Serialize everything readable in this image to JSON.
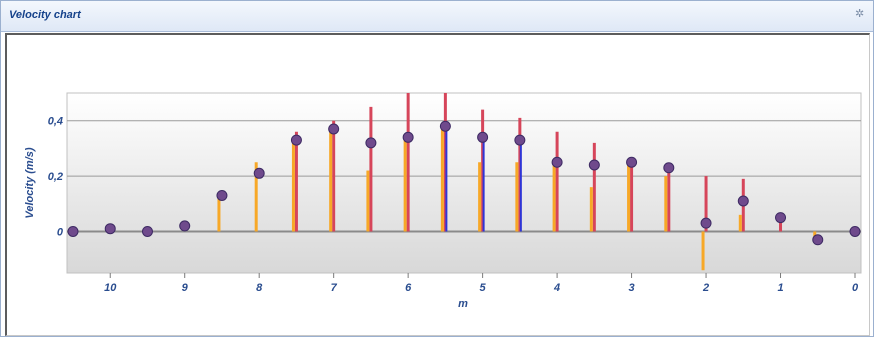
{
  "window": {
    "title": "Velocity chart",
    "pin_icon": "pin-icon"
  },
  "chart_data": {
    "type": "scatter",
    "title": "",
    "xlabel": "m",
    "ylabel": "Velocity (m/s)",
    "xlim": [
      10.5,
      0
    ],
    "ylim": [
      -0.15,
      0.5
    ],
    "x_ticks": [
      10,
      9,
      8,
      7,
      6,
      5,
      4,
      3,
      2,
      1,
      0
    ],
    "x_tick_labels": [
      "10",
      "9",
      "8",
      "7",
      "6",
      "5",
      "4",
      "3",
      "2",
      "1",
      "0"
    ],
    "y_ticks": [
      0,
      0.2,
      0.4
    ],
    "y_tick_labels": [
      "0",
      "0,2",
      "0,4"
    ],
    "grid": true,
    "colors": {
      "points": "#6f4a8c",
      "red_bars": "#d6455a",
      "orange_bars": "#f7a827",
      "blue_bars": "#2f35d6",
      "zero_line": "#8a8a8a"
    },
    "points": [
      {
        "x": 10.5,
        "y": 0.0
      },
      {
        "x": 10.0,
        "y": 0.01
      },
      {
        "x": 9.5,
        "y": 0.0
      },
      {
        "x": 9.0,
        "y": 0.02
      },
      {
        "x": 8.5,
        "y": 0.13
      },
      {
        "x": 8.0,
        "y": 0.21
      },
      {
        "x": 7.5,
        "y": 0.33
      },
      {
        "x": 7.0,
        "y": 0.37
      },
      {
        "x": 6.5,
        "y": 0.32
      },
      {
        "x": 6.0,
        "y": 0.34
      },
      {
        "x": 5.5,
        "y": 0.38
      },
      {
        "x": 5.0,
        "y": 0.34
      },
      {
        "x": 4.5,
        "y": 0.33
      },
      {
        "x": 4.0,
        "y": 0.25
      },
      {
        "x": 3.5,
        "y": 0.24
      },
      {
        "x": 3.0,
        "y": 0.25
      },
      {
        "x": 2.5,
        "y": 0.23
      },
      {
        "x": 2.0,
        "y": 0.03
      },
      {
        "x": 1.5,
        "y": 0.11
      },
      {
        "x": 1.0,
        "y": 0.05
      },
      {
        "x": 0.5,
        "y": -0.03
      },
      {
        "x": 0.0,
        "y": 0.0
      }
    ],
    "red_series": [
      {
        "x": 7.5,
        "y": 0.36
      },
      {
        "x": 7.0,
        "y": 0.4
      },
      {
        "x": 6.5,
        "y": 0.45
      },
      {
        "x": 6.0,
        "y": 0.5
      },
      {
        "x": 5.5,
        "y": 0.5
      },
      {
        "x": 5.0,
        "y": 0.44
      },
      {
        "x": 4.5,
        "y": 0.41
      },
      {
        "x": 4.0,
        "y": 0.36
      },
      {
        "x": 3.5,
        "y": 0.32
      },
      {
        "x": 3.0,
        "y": 0.26
      },
      {
        "x": 2.5,
        "y": 0.24
      },
      {
        "x": 2.0,
        "y": 0.2
      },
      {
        "x": 1.5,
        "y": 0.19
      },
      {
        "x": 1.0,
        "y": 0.05
      }
    ],
    "orange_series": [
      {
        "x": 8.5,
        "y": 0.12
      },
      {
        "x": 8.0,
        "y": 0.25
      },
      {
        "x": 7.5,
        "y": 0.34
      },
      {
        "x": 7.0,
        "y": 0.38
      },
      {
        "x": 6.5,
        "y": 0.22
      },
      {
        "x": 6.0,
        "y": 0.35
      },
      {
        "x": 5.5,
        "y": 0.38
      },
      {
        "x": 5.0,
        "y": 0.25
      },
      {
        "x": 4.5,
        "y": 0.25
      },
      {
        "x": 4.0,
        "y": 0.25
      },
      {
        "x": 3.5,
        "y": 0.16
      },
      {
        "x": 3.0,
        "y": 0.24
      },
      {
        "x": 2.5,
        "y": 0.2
      },
      {
        "x": 2.0,
        "y": -0.14
      },
      {
        "x": 1.5,
        "y": 0.06
      },
      {
        "x": 0.5,
        "y": -0.02
      }
    ],
    "blue_series": [
      {
        "x": 5.5,
        "y": 0.38
      },
      {
        "x": 5.0,
        "y": 0.34
      },
      {
        "x": 4.5,
        "y": 0.33
      }
    ]
  }
}
